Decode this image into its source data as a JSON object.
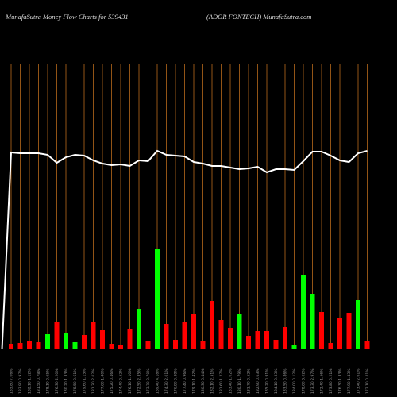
{
  "chart_data": {
    "type": "bar",
    "title": "MunafaSutra  Money Flow  Charts for 539431",
    "subtitle": "(ADOR FONTECH) MunafaSutra.com",
    "categories": [
      "185.80 7.06%",
      "183.90 0.97%",
      "182.10 1.12%",
      "181.50 0.78%",
      "178.10 0.65%",
      "176.30 2.20%",
      "180.20 1.33%",
      "178.50 0.61%",
      "179.60 1.15%",
      "181.20 2.02%",
      "177.60 1.40%",
      "175.20 0.46%",
      "174.40 0.52%",
      "176.10 1.10%",
      "172.50 2.35%",
      "173.70 0.70%",
      "169.40 4.18%",
      "174.30 2.01%",
      "176.80 0.38%",
      "177.40 0.96%",
      "179.10 1.42%",
      "180.30 0.44%",
      "182.10 2.51%",
      "181.60 1.27%",
      "183.40 1.02%",
      "180.10 1.79%",
      "181.70 0.52%",
      "182.90 0.63%",
      "185.20 0.91%",
      "184.10 0.33%",
      "183.50 0.86%",
      "184.00 0.12%",
      "178.60 3.02%",
      "173.30 2.97%",
      "172.40 1.56%",
      "173.80 0.21%",
      "176.30 1.33%",
      "177.90 1.43%",
      "173.40 2.61%",
      "172.10 0.41%"
    ],
    "series": [
      {
        "values": [
          7,
          8,
          10,
          9,
          19,
          35,
          20,
          9,
          18,
          35,
          24,
          7,
          6,
          26,
          51,
          10,
          127,
          32,
          12,
          34,
          44,
          10,
          61,
          37,
          27,
          45,
          17,
          23,
          23,
          12,
          28,
          5,
          94,
          70,
          47,
          8,
          39,
          46,
          62,
          11
        ],
        "colors": [
          "red",
          "red",
          "red",
          "red",
          "lime",
          "red",
          "lime",
          "lime",
          "red",
          "red",
          "red",
          "red",
          "red",
          "red",
          "lime",
          "red",
          "lime",
          "red",
          "red",
          "red",
          "red",
          "red",
          "red",
          "red",
          "red",
          "lime",
          "red",
          "red",
          "red",
          "red",
          "red",
          "lime",
          "lime",
          "lime",
          "red",
          "red",
          "red",
          "red",
          "lime",
          "red"
        ]
      },
      {
        "type": "line",
        "color": "white",
        "x": [
          -1,
          0,
          1,
          2,
          3,
          4,
          5,
          6,
          7,
          8,
          9,
          10,
          11,
          12,
          13,
          14,
          15,
          16,
          17,
          18,
          19,
          20,
          21,
          22,
          23,
          24,
          25,
          26,
          27,
          28,
          29,
          30,
          31,
          32,
          33,
          34,
          35,
          36,
          37,
          38,
          39
        ],
        "values": [
          0,
          248,
          247,
          247,
          247,
          245,
          235,
          242,
          245,
          244,
          238,
          234,
          232,
          233,
          231,
          238,
          237,
          250,
          245,
          244,
          243,
          236,
          234,
          231,
          231,
          229,
          227,
          228,
          230,
          223,
          227,
          227,
          226,
          237,
          249,
          249,
          244,
          238,
          236,
          247,
          250
        ]
      }
    ],
    "ylim": [
      0,
      360
    ],
    "grid": true,
    "grid_color": "#b86a1c",
    "background": "black"
  }
}
